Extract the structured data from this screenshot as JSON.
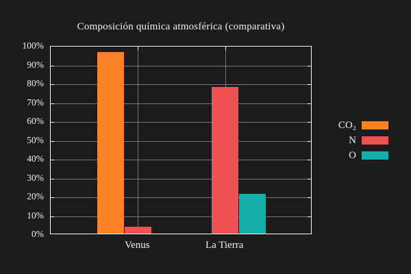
{
  "chart_data": {
    "type": "bar",
    "title": "Composición química atmosférica (comparativa)",
    "xlabel": "",
    "ylabel": "",
    "categories": [
      "Venus",
      "La Tierra"
    ],
    "series": [
      {
        "name": "CO₂",
        "color": "#fd8128",
        "values": [
          96.5,
          0
        ]
      },
      {
        "name": "N",
        "color": "#ee5253",
        "values": [
          3.5,
          78
        ]
      },
      {
        "name": "O",
        "color": "#16b0ac",
        "values": [
          0,
          21
        ]
      }
    ],
    "ylim": [
      0,
      100
    ],
    "ytick_step": 10,
    "yticks": [
      "0%",
      "10%",
      "20%",
      "30%",
      "40%",
      "50%",
      "60%",
      "70%",
      "80%",
      "90%",
      "100%"
    ],
    "grid": "on",
    "legend_position": "right-middle-outside"
  },
  "colors": {
    "background": "#1b1b1b",
    "frame": "#ffffff",
    "gridline": "#787878",
    "text": "#f0f0f0"
  }
}
